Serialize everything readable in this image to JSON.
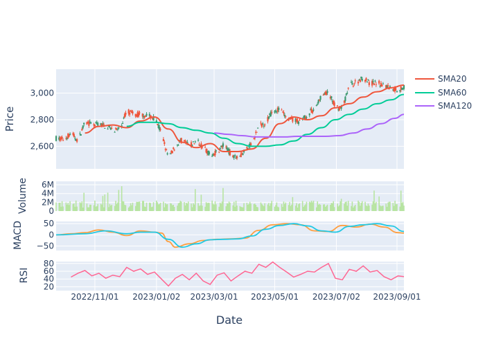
{
  "chart_data": {
    "type": "candlestick-dashboard",
    "xlabel": "Date",
    "x_ticks": [
      "2022/11/01",
      "2023/01/02",
      "2023/03/01",
      "2023/05/01",
      "2023/07/02",
      "2023/09/01"
    ],
    "x_range": [
      "2022/09/23",
      "2023/09/08"
    ],
    "colors": {
      "plot_bg": "#e5ecf6",
      "grid": "#ffffff",
      "up": "#3d9970",
      "down": "#ef553b",
      "sma20": "#ef553b",
      "sma60": "#00cc96",
      "sma120": "#ab63fa",
      "volume": "#b7e4a1",
      "macd": "#ff9f40",
      "signal": "#1fc8e3",
      "rsi": "#ff6692",
      "text": "#2a3f5f"
    },
    "panels": {
      "price": {
        "ylabel": "Price",
        "ylim": [
          2430,
          3180
        ],
        "yticks": [
          "2,600",
          "2,800",
          "3,000"
        ]
      },
      "volume": {
        "ylabel": "Volume",
        "ylim": [
          0,
          6800000
        ],
        "yticks": [
          "0",
          "2M",
          "4M",
          "6M"
        ]
      },
      "macd": {
        "ylabel": "MACD",
        "ylim": [
          -70,
          60
        ],
        "yticks": [
          "−50",
          "0",
          "50"
        ]
      },
      "rsi": {
        "ylabel": "RSI",
        "ylim": [
          10,
          85
        ],
        "yticks": [
          "20",
          "40",
          "60",
          "80"
        ]
      }
    },
    "legend": {
      "position": "top-right",
      "items": [
        "SMA20",
        "SMA60",
        "SMA120"
      ]
    },
    "price_path": [
      [
        "2022/09/23",
        2660
      ],
      [
        "2022/10/01",
        2650
      ],
      [
        "2022/10/08",
        2700
      ],
      [
        "2022/10/15",
        2640
      ],
      [
        "2022/10/22",
        2780
      ],
      [
        "2022/10/29",
        2760
      ],
      [
        "2022/11/05",
        2770
      ],
      [
        "2022/11/12",
        2750
      ],
      [
        "2022/11/19",
        2730
      ],
      [
        "2022/11/26",
        2720
      ],
      [
        "2022/12/03",
        2870
      ],
      [
        "2022/12/10",
        2840
      ],
      [
        "2022/12/17",
        2840
      ],
      [
        "2022/12/24",
        2830
      ],
      [
        "2022/12/31",
        2810
      ],
      [
        "2023/01/07",
        2700
      ],
      [
        "2023/01/14",
        2510
      ],
      [
        "2023/01/21",
        2600
      ],
      [
        "2023/01/28",
        2650
      ],
      [
        "2023/02/04",
        2600
      ],
      [
        "2023/02/11",
        2640
      ],
      [
        "2023/02/18",
        2600
      ],
      [
        "2023/02/25",
        2530
      ],
      [
        "2023/03/04",
        2560
      ],
      [
        "2023/03/11",
        2610
      ],
      [
        "2023/03/18",
        2540
      ],
      [
        "2023/03/25",
        2520
      ],
      [
        "2023/04/01",
        2560
      ],
      [
        "2023/04/08",
        2620
      ],
      [
        "2023/04/15",
        2750
      ],
      [
        "2023/04/22",
        2780
      ],
      [
        "2023/04/29",
        2870
      ],
      [
        "2023/05/06",
        2880
      ],
      [
        "2023/05/13",
        2810
      ],
      [
        "2023/05/20",
        2800
      ],
      [
        "2023/05/27",
        2780
      ],
      [
        "2023/06/03",
        2840
      ],
      [
        "2023/06/10",
        2880
      ],
      [
        "2023/06/17",
        2980
      ],
      [
        "2023/06/24",
        3000
      ],
      [
        "2023/07/01",
        2900
      ],
      [
        "2023/07/08",
        2880
      ],
      [
        "2023/07/15",
        3060
      ],
      [
        "2023/07/22",
        3080
      ],
      [
        "2023/07/29",
        3120
      ],
      [
        "2023/08/05",
        3070
      ],
      [
        "2023/08/12",
        3080
      ],
      [
        "2023/08/19",
        3060
      ],
      [
        "2023/08/26",
        3040
      ],
      [
        "2023/09/02",
        3020
      ],
      [
        "2023/09/08",
        3050
      ]
    ],
    "sma20": [
      [
        "2022/10/22",
        2700
      ],
      [
        "2022/11/05",
        2750
      ],
      [
        "2022/11/19",
        2760
      ],
      [
        "2022/12/03",
        2740
      ],
      [
        "2022/12/17",
        2790
      ],
      [
        "2022/12/31",
        2820
      ],
      [
        "2023/01/14",
        2730
      ],
      [
        "2023/01/28",
        2630
      ],
      [
        "2023/02/11",
        2590
      ],
      [
        "2023/02/25",
        2620
      ],
      [
        "2023/03/11",
        2560
      ],
      [
        "2023/03/25",
        2560
      ],
      [
        "2023/04/08",
        2580
      ],
      [
        "2023/04/22",
        2660
      ],
      [
        "2023/05/06",
        2770
      ],
      [
        "2023/05/20",
        2820
      ],
      [
        "2023/06/03",
        2800
      ],
      [
        "2023/06/17",
        2830
      ],
      [
        "2023/07/01",
        2890
      ],
      [
        "2023/07/15",
        2920
      ],
      [
        "2023/07/29",
        2970
      ],
      [
        "2023/08/12",
        3010
      ],
      [
        "2023/08/26",
        3040
      ],
      [
        "2023/09/08",
        3060
      ]
    ],
    "sma60": [
      [
        "2022/12/03",
        2750
      ],
      [
        "2022/12/17",
        2780
      ],
      [
        "2022/12/31",
        2780
      ],
      [
        "2023/01/14",
        2770
      ],
      [
        "2023/01/28",
        2740
      ],
      [
        "2023/02/11",
        2720
      ],
      [
        "2023/02/25",
        2700
      ],
      [
        "2023/03/11",
        2660
      ],
      [
        "2023/03/25",
        2620
      ],
      [
        "2023/04/08",
        2600
      ],
      [
        "2023/04/22",
        2600
      ],
      [
        "2023/05/06",
        2610
      ],
      [
        "2023/05/20",
        2640
      ],
      [
        "2023/06/03",
        2690
      ],
      [
        "2023/06/17",
        2740
      ],
      [
        "2023/07/01",
        2800
      ],
      [
        "2023/07/15",
        2840
      ],
      [
        "2023/07/29",
        2880
      ],
      [
        "2023/08/12",
        2920
      ],
      [
        "2023/08/26",
        2950
      ],
      [
        "2023/09/08",
        2990
      ]
    ],
    "sma120": [
      [
        "2023/03/01",
        2700
      ],
      [
        "2023/03/15",
        2690
      ],
      [
        "2023/03/29",
        2680
      ],
      [
        "2023/04/12",
        2670
      ],
      [
        "2023/04/26",
        2670
      ],
      [
        "2023/05/10",
        2670
      ],
      [
        "2023/05/24",
        2675
      ],
      [
        "2023/06/07",
        2675
      ],
      [
        "2023/06/21",
        2675
      ],
      [
        "2023/07/05",
        2680
      ],
      [
        "2023/07/19",
        2700
      ],
      [
        "2023/08/02",
        2730
      ],
      [
        "2023/08/16",
        2770
      ],
      [
        "2023/08/30",
        2810
      ],
      [
        "2023/09/08",
        2840
      ]
    ],
    "macd": [
      [
        "2022/09/23",
        0
      ],
      [
        "2022/10/08",
        5
      ],
      [
        "2022/10/22",
        10
      ],
      [
        "2022/11/05",
        22
      ],
      [
        "2022/11/19",
        12
      ],
      [
        "2022/12/03",
        -3
      ],
      [
        "2022/12/17",
        18
      ],
      [
        "2022/12/31",
        12
      ],
      [
        "2023/01/07",
        8
      ],
      [
        "2023/01/14",
        -30
      ],
      [
        "2023/01/21",
        -55
      ],
      [
        "2023/02/04",
        -40
      ],
      [
        "2023/02/18",
        -25
      ],
      [
        "2023/03/04",
        -20
      ],
      [
        "2023/03/18",
        -18
      ],
      [
        "2023/04/01",
        -15
      ],
      [
        "2023/04/15",
        20
      ],
      [
        "2023/04/29",
        45
      ],
      [
        "2023/05/13",
        50
      ],
      [
        "2023/05/27",
        45
      ],
      [
        "2023/06/10",
        18
      ],
      [
        "2023/06/24",
        15
      ],
      [
        "2023/07/08",
        42
      ],
      [
        "2023/07/22",
        35
      ],
      [
        "2023/08/05",
        48
      ],
      [
        "2023/08/19",
        35
      ],
      [
        "2023/09/02",
        10
      ],
      [
        "2023/09/08",
        8
      ]
    ],
    "signal": [
      [
        "2022/09/23",
        0
      ],
      [
        "2022/10/22",
        5
      ],
      [
        "2022/11/12",
        18
      ],
      [
        "2022/12/03",
        5
      ],
      [
        "2022/12/17",
        12
      ],
      [
        "2022/12/31",
        12
      ],
      [
        "2023/01/14",
        -20
      ],
      [
        "2023/01/28",
        -55
      ],
      [
        "2023/02/11",
        -40
      ],
      [
        "2023/02/25",
        -22
      ],
      [
        "2023/03/11",
        -20
      ],
      [
        "2023/03/25",
        -18
      ],
      [
        "2023/04/08",
        -5
      ],
      [
        "2023/04/22",
        25
      ],
      [
        "2023/05/06",
        42
      ],
      [
        "2023/05/20",
        50
      ],
      [
        "2023/06/03",
        40
      ],
      [
        "2023/06/17",
        18
      ],
      [
        "2023/07/01",
        12
      ],
      [
        "2023/07/15",
        38
      ],
      [
        "2023/07/29",
        45
      ],
      [
        "2023/08/12",
        50
      ],
      [
        "2023/08/26",
        40
      ],
      [
        "2023/09/08",
        15
      ]
    ],
    "rsi": [
      [
        "2022/10/08",
        45
      ],
      [
        "2022/10/15",
        55
      ],
      [
        "2022/10/22",
        62
      ],
      [
        "2022/10/29",
        48
      ],
      [
        "2022/11/05",
        55
      ],
      [
        "2022/11/12",
        42
      ],
      [
        "2022/11/19",
        50
      ],
      [
        "2022/11/26",
        46
      ],
      [
        "2022/12/03",
        70
      ],
      [
        "2022/12/10",
        60
      ],
      [
        "2022/12/17",
        66
      ],
      [
        "2022/12/24",
        52
      ],
      [
        "2022/12/31",
        58
      ],
      [
        "2023/01/07",
        40
      ],
      [
        "2023/01/14",
        22
      ],
      [
        "2023/01/21",
        42
      ],
      [
        "2023/01/28",
        52
      ],
      [
        "2023/02/04",
        38
      ],
      [
        "2023/02/11",
        55
      ],
      [
        "2023/02/18",
        35
      ],
      [
        "2023/02/25",
        26
      ],
      [
        "2023/03/04",
        50
      ],
      [
        "2023/03/11",
        56
      ],
      [
        "2023/03/18",
        35
      ],
      [
        "2023/03/25",
        48
      ],
      [
        "2023/04/01",
        60
      ],
      [
        "2023/04/08",
        55
      ],
      [
        "2023/04/15",
        78
      ],
      [
        "2023/04/22",
        70
      ],
      [
        "2023/04/29",
        84
      ],
      [
        "2023/05/06",
        70
      ],
      [
        "2023/05/13",
        58
      ],
      [
        "2023/05/20",
        45
      ],
      [
        "2023/05/27",
        52
      ],
      [
        "2023/06/03",
        60
      ],
      [
        "2023/06/10",
        58
      ],
      [
        "2023/06/17",
        70
      ],
      [
        "2023/06/24",
        80
      ],
      [
        "2023/07/01",
        42
      ],
      [
        "2023/07/08",
        38
      ],
      [
        "2023/07/15",
        65
      ],
      [
        "2023/07/22",
        60
      ],
      [
        "2023/07/29",
        74
      ],
      [
        "2023/08/05",
        58
      ],
      [
        "2023/08/12",
        62
      ],
      [
        "2023/08/19",
        46
      ],
      [
        "2023/08/26",
        38
      ],
      [
        "2023/09/02",
        48
      ],
      [
        "2023/09/08",
        46
      ]
    ]
  }
}
